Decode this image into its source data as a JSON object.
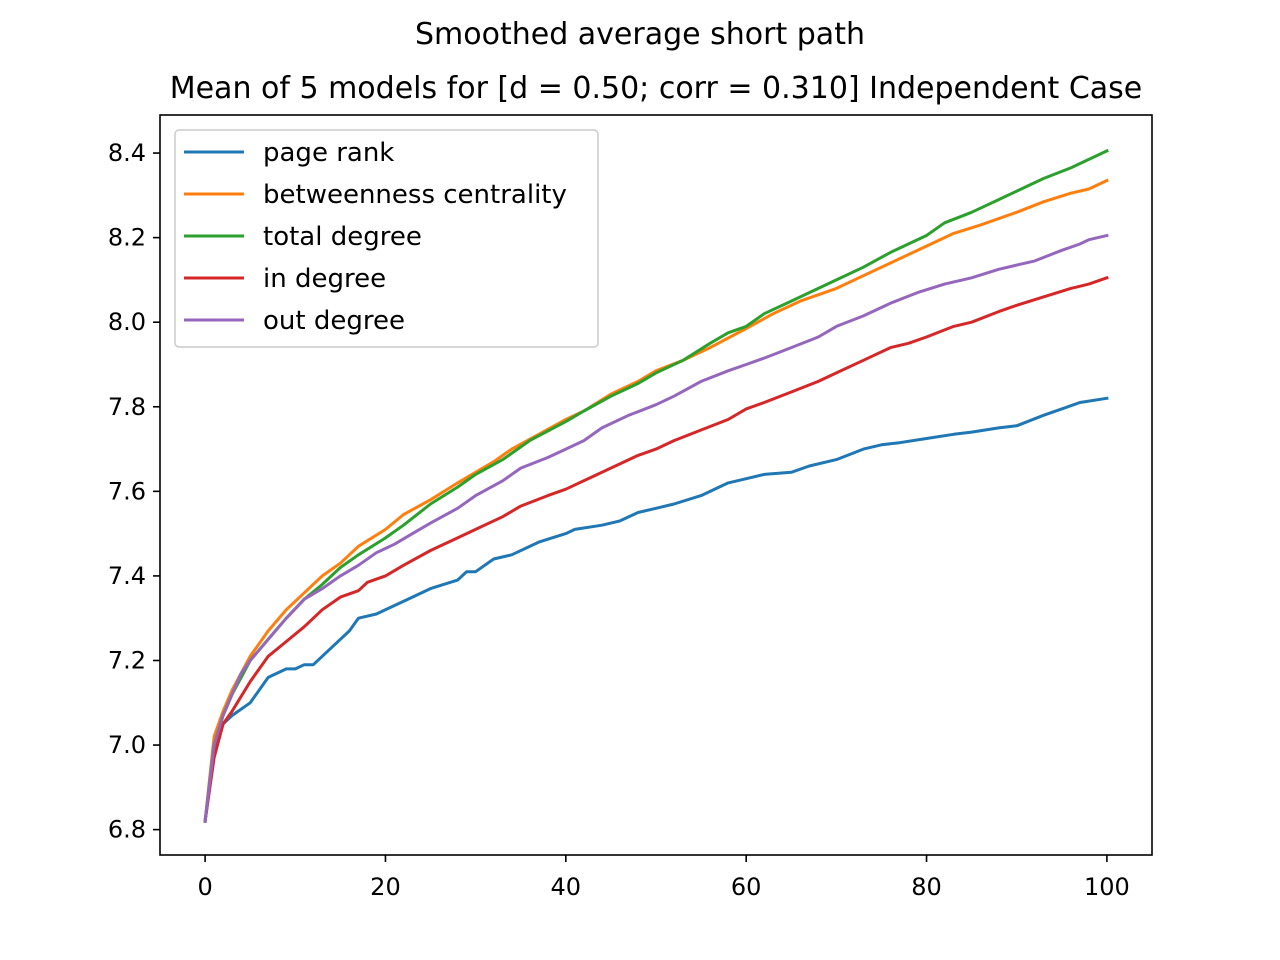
{
  "chart_data": {
    "type": "line",
    "suptitle": "Smoothed average short path",
    "title": "Mean of 5 models for [d = 0.50; corr = 0.310] Independent Case",
    "xlabel": "",
    "ylabel": "",
    "xlim": [
      -5,
      105
    ],
    "ylim": [
      6.74,
      8.49
    ],
    "xticks": [
      0,
      20,
      40,
      60,
      80,
      100
    ],
    "xtick_labels": [
      "0",
      "20",
      "40",
      "60",
      "80",
      "100"
    ],
    "yticks": [
      6.8,
      7.0,
      7.2,
      7.4,
      7.6,
      7.8,
      8.0,
      8.2,
      8.4
    ],
    "ytick_labels": [
      "6.8",
      "7.0",
      "7.2",
      "7.4",
      "7.6",
      "7.8",
      "8.0",
      "8.2",
      "8.4"
    ],
    "grid": false,
    "legend_position": "top-left",
    "series": [
      {
        "name": "page rank",
        "color": "#1f77b4",
        "points": [
          [
            0,
            6.82
          ],
          [
            1,
            6.98
          ],
          [
            2,
            7.05
          ],
          [
            3,
            7.07
          ],
          [
            5,
            7.1
          ],
          [
            7,
            7.16
          ],
          [
            9,
            7.18
          ],
          [
            10,
            7.18
          ],
          [
            11,
            7.19
          ],
          [
            12,
            7.19
          ],
          [
            14,
            7.23
          ],
          [
            16,
            7.27
          ],
          [
            17,
            7.3
          ],
          [
            19,
            7.31
          ],
          [
            21,
            7.33
          ],
          [
            23,
            7.35
          ],
          [
            25,
            7.37
          ],
          [
            28,
            7.39
          ],
          [
            29,
            7.41
          ],
          [
            30,
            7.41
          ],
          [
            32,
            7.44
          ],
          [
            34,
            7.45
          ],
          [
            37,
            7.48
          ],
          [
            40,
            7.5
          ],
          [
            41,
            7.51
          ],
          [
            44,
            7.52
          ],
          [
            46,
            7.53
          ],
          [
            48,
            7.55
          ],
          [
            50,
            7.56
          ],
          [
            52,
            7.57
          ],
          [
            55,
            7.59
          ],
          [
            58,
            7.62
          ],
          [
            60,
            7.63
          ],
          [
            62,
            7.64
          ],
          [
            65,
            7.645
          ],
          [
            67,
            7.66
          ],
          [
            70,
            7.675
          ],
          [
            73,
            7.7
          ],
          [
            75,
            7.71
          ],
          [
            77,
            7.715
          ],
          [
            80,
            7.725
          ],
          [
            83,
            7.735
          ],
          [
            85,
            7.74
          ],
          [
            88,
            7.75
          ],
          [
            90,
            7.755
          ],
          [
            93,
            7.78
          ],
          [
            95,
            7.795
          ],
          [
            97,
            7.81
          ],
          [
            100,
            7.82
          ]
        ]
      },
      {
        "name": "betweenness centrality",
        "color": "#ff7f0e",
        "points": [
          [
            0,
            6.82
          ],
          [
            1,
            7.02
          ],
          [
            2,
            7.08
          ],
          [
            3,
            7.13
          ],
          [
            5,
            7.21
          ],
          [
            7,
            7.27
          ],
          [
            9,
            7.32
          ],
          [
            11,
            7.36
          ],
          [
            13,
            7.4
          ],
          [
            15,
            7.43
          ],
          [
            17,
            7.47
          ],
          [
            20,
            7.51
          ],
          [
            22,
            7.545
          ],
          [
            25,
            7.58
          ],
          [
            28,
            7.62
          ],
          [
            30,
            7.645
          ],
          [
            32,
            7.67
          ],
          [
            34,
            7.7
          ],
          [
            37,
            7.735
          ],
          [
            40,
            7.77
          ],
          [
            42,
            7.79
          ],
          [
            45,
            7.83
          ],
          [
            48,
            7.86
          ],
          [
            50,
            7.885
          ],
          [
            53,
            7.91
          ],
          [
            56,
            7.94
          ],
          [
            60,
            7.985
          ],
          [
            63,
            8.02
          ],
          [
            66,
            8.05
          ],
          [
            70,
            8.08
          ],
          [
            73,
            8.11
          ],
          [
            76,
            8.14
          ],
          [
            80,
            8.18
          ],
          [
            83,
            8.21
          ],
          [
            86,
            8.23
          ],
          [
            90,
            8.26
          ],
          [
            93,
            8.285
          ],
          [
            96,
            8.305
          ],
          [
            98,
            8.315
          ],
          [
            100,
            8.335
          ]
        ]
      },
      {
        "name": "total degree",
        "color": "#2ca02c",
        "points": [
          [
            0,
            6.82
          ],
          [
            1,
            7.0
          ],
          [
            2,
            7.07
          ],
          [
            3,
            7.12
          ],
          [
            5,
            7.2
          ],
          [
            7,
            7.25
          ],
          [
            9,
            7.3
          ],
          [
            11,
            7.345
          ],
          [
            13,
            7.38
          ],
          [
            15,
            7.42
          ],
          [
            17,
            7.45
          ],
          [
            20,
            7.49
          ],
          [
            22,
            7.52
          ],
          [
            25,
            7.57
          ],
          [
            28,
            7.61
          ],
          [
            30,
            7.64
          ],
          [
            33,
            7.675
          ],
          [
            36,
            7.72
          ],
          [
            40,
            7.765
          ],
          [
            42,
            7.79
          ],
          [
            45,
            7.825
          ],
          [
            48,
            7.855
          ],
          [
            50,
            7.88
          ],
          [
            53,
            7.91
          ],
          [
            56,
            7.95
          ],
          [
            58,
            7.975
          ],
          [
            60,
            7.99
          ],
          [
            62,
            8.02
          ],
          [
            65,
            8.05
          ],
          [
            67,
            8.07
          ],
          [
            70,
            8.1
          ],
          [
            73,
            8.13
          ],
          [
            76,
            8.165
          ],
          [
            80,
            8.205
          ],
          [
            82,
            8.235
          ],
          [
            85,
            8.26
          ],
          [
            88,
            8.29
          ],
          [
            90,
            8.31
          ],
          [
            93,
            8.34
          ],
          [
            96,
            8.365
          ],
          [
            100,
            8.405
          ]
        ]
      },
      {
        "name": "in degree",
        "color": "#d62728",
        "points": [
          [
            0,
            6.82
          ],
          [
            1,
            6.97
          ],
          [
            2,
            7.05
          ],
          [
            3,
            7.08
          ],
          [
            5,
            7.15
          ],
          [
            7,
            7.21
          ],
          [
            9,
            7.245
          ],
          [
            11,
            7.28
          ],
          [
            13,
            7.32
          ],
          [
            15,
            7.35
          ],
          [
            17,
            7.365
          ],
          [
            18,
            7.385
          ],
          [
            20,
            7.4
          ],
          [
            22,
            7.425
          ],
          [
            25,
            7.46
          ],
          [
            28,
            7.49
          ],
          [
            30,
            7.51
          ],
          [
            33,
            7.54
          ],
          [
            35,
            7.565
          ],
          [
            38,
            7.59
          ],
          [
            40,
            7.605
          ],
          [
            43,
            7.635
          ],
          [
            46,
            7.665
          ],
          [
            48,
            7.685
          ],
          [
            50,
            7.7
          ],
          [
            52,
            7.72
          ],
          [
            55,
            7.745
          ],
          [
            58,
            7.77
          ],
          [
            60,
            7.795
          ],
          [
            62,
            7.81
          ],
          [
            65,
            7.835
          ],
          [
            68,
            7.86
          ],
          [
            70,
            7.88
          ],
          [
            73,
            7.91
          ],
          [
            76,
            7.94
          ],
          [
            78,
            7.95
          ],
          [
            80,
            7.965
          ],
          [
            83,
            7.99
          ],
          [
            85,
            8.0
          ],
          [
            88,
            8.025
          ],
          [
            90,
            8.04
          ],
          [
            93,
            8.06
          ],
          [
            96,
            8.08
          ],
          [
            98,
            8.09
          ],
          [
            100,
            8.105
          ]
        ]
      },
      {
        "name": "out degree",
        "color": "#9467bd",
        "points": [
          [
            0,
            6.82
          ],
          [
            1,
            7.0
          ],
          [
            2,
            7.07
          ],
          [
            3,
            7.12
          ],
          [
            4,
            7.17
          ],
          [
            5,
            7.2
          ],
          [
            7,
            7.25
          ],
          [
            9,
            7.3
          ],
          [
            11,
            7.345
          ],
          [
            13,
            7.37
          ],
          [
            15,
            7.4
          ],
          [
            17,
            7.425
          ],
          [
            19,
            7.455
          ],
          [
            21,
            7.475
          ],
          [
            23,
            7.5
          ],
          [
            25,
            7.525
          ],
          [
            28,
            7.56
          ],
          [
            30,
            7.59
          ],
          [
            33,
            7.625
          ],
          [
            35,
            7.655
          ],
          [
            38,
            7.68
          ],
          [
            40,
            7.7
          ],
          [
            42,
            7.72
          ],
          [
            44,
            7.75
          ],
          [
            47,
            7.78
          ],
          [
            50,
            7.805
          ],
          [
            52,
            7.825
          ],
          [
            55,
            7.86
          ],
          [
            58,
            7.885
          ],
          [
            60,
            7.9
          ],
          [
            62,
            7.915
          ],
          [
            65,
            7.94
          ],
          [
            68,
            7.965
          ],
          [
            70,
            7.99
          ],
          [
            73,
            8.015
          ],
          [
            76,
            8.045
          ],
          [
            79,
            8.07
          ],
          [
            82,
            8.09
          ],
          [
            85,
            8.105
          ],
          [
            88,
            8.125
          ],
          [
            90,
            8.135
          ],
          [
            92,
            8.145
          ],
          [
            95,
            8.17
          ],
          [
            97,
            8.185
          ],
          [
            98,
            8.195
          ],
          [
            100,
            8.205
          ]
        ]
      }
    ]
  }
}
